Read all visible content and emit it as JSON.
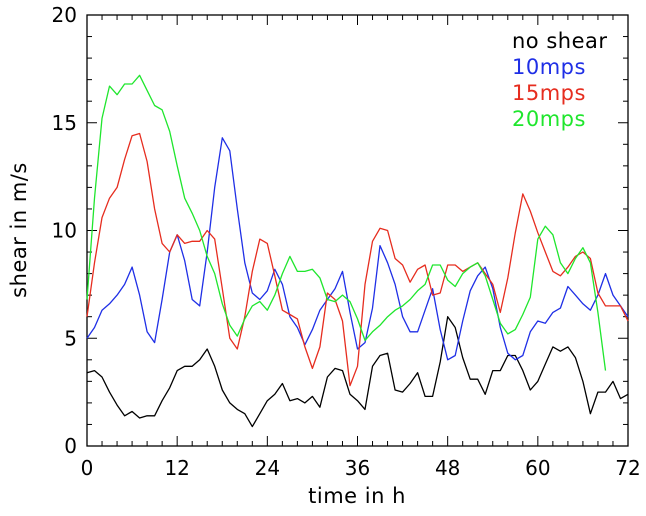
{
  "chart_data": {
    "type": "line",
    "title": "",
    "xlabel": "time in h",
    "ylabel": "shear in m/s",
    "xlim": [
      0,
      72
    ],
    "ylim": [
      0,
      20
    ],
    "grid": false,
    "legend_position": "top-right",
    "x_ticks": [
      0,
      12,
      24,
      36,
      48,
      60,
      72
    ],
    "y_ticks": [
      0,
      5,
      10,
      15,
      20
    ],
    "x_tick_labels": [
      "0",
      "12",
      "24",
      "36",
      "48",
      "60",
      "72"
    ],
    "y_tick_labels": [
      "0",
      "5",
      "10",
      "15",
      "20"
    ],
    "series": [
      {
        "name": "no shear",
        "color": "#000000",
        "x": [
          0,
          1,
          2,
          3,
          4,
          5,
          6,
          7,
          8,
          9,
          10,
          11,
          12,
          13,
          14,
          15,
          16,
          17,
          18,
          19,
          20,
          21,
          22,
          23,
          24,
          25,
          26,
          27,
          28,
          29,
          30,
          31,
          32,
          33,
          34,
          35,
          36,
          37,
          38,
          39,
          40,
          41,
          42,
          43,
          44,
          45,
          46,
          47,
          48,
          49,
          50,
          51,
          52,
          53,
          54,
          55,
          56,
          57,
          58,
          59,
          60,
          61,
          62,
          63,
          64,
          65,
          66,
          67,
          68,
          69,
          70,
          71,
          72
        ],
        "values": [
          3.4,
          3.5,
          3.2,
          2.5,
          1.9,
          1.4,
          1.6,
          1.3,
          1.4,
          1.4,
          2.1,
          2.7,
          3.5,
          3.7,
          3.7,
          4.0,
          4.5,
          3.7,
          2.6,
          2.0,
          1.7,
          1.5,
          0.9,
          1.5,
          2.1,
          2.4,
          2.9,
          2.1,
          2.2,
          2.0,
          2.3,
          1.8,
          3.2,
          3.6,
          3.5,
          2.4,
          2.1,
          1.7,
          3.7,
          4.2,
          4.3,
          2.6,
          2.5,
          2.9,
          3.4,
          2.3,
          2.3,
          3.9,
          6.0,
          5.5,
          4.1,
          3.1,
          3.1,
          2.4,
          3.5,
          3.5,
          4.2,
          4.2,
          3.5,
          2.6,
          3.0,
          3.8,
          4.6,
          4.4,
          4.6,
          4.1,
          3.0,
          1.5,
          2.5,
          2.5,
          3.0,
          2.2,
          2.4
        ]
      },
      {
        "name": "10mps",
        "color": "#1f2fe6",
        "x": [
          0,
          1,
          2,
          3,
          4,
          5,
          6,
          7,
          8,
          9,
          10,
          11,
          12,
          13,
          14,
          15,
          16,
          17,
          18,
          19,
          20,
          21,
          22,
          23,
          24,
          25,
          26,
          27,
          28,
          29,
          30,
          31,
          32,
          33,
          34,
          35,
          36,
          37,
          38,
          39,
          40,
          41,
          42,
          43,
          44,
          45,
          46,
          47,
          48,
          49,
          50,
          51,
          52,
          53,
          54,
          55,
          56,
          57,
          58,
          59,
          60,
          61,
          62,
          63,
          64,
          65,
          66,
          67,
          68,
          69,
          70,
          71,
          72
        ],
        "values": [
          5.0,
          5.5,
          6.3,
          6.6,
          7.0,
          7.5,
          8.3,
          7.0,
          5.3,
          4.8,
          6.8,
          9.0,
          9.8,
          8.6,
          6.8,
          6.5,
          9.0,
          12.0,
          14.3,
          13.7,
          11.0,
          8.5,
          7.1,
          6.8,
          7.2,
          8.2,
          7.5,
          6.0,
          5.5,
          4.7,
          5.4,
          6.3,
          6.8,
          7.3,
          8.1,
          6.2,
          4.5,
          4.8,
          6.4,
          9.3,
          8.5,
          7.5,
          6.0,
          5.3,
          5.3,
          6.3,
          7.3,
          5.4,
          4.0,
          4.2,
          5.8,
          7.2,
          7.9,
          8.3,
          7.3,
          5.5,
          4.3,
          4.0,
          4.2,
          5.3,
          5.8,
          5.7,
          6.2,
          6.4,
          7.4,
          7.0,
          6.6,
          6.3,
          7.0,
          8.0,
          7.0,
          6.5,
          6.0
        ]
      },
      {
        "name": "15mps",
        "color": "#e62d1f",
        "x": [
          0,
          1,
          2,
          3,
          4,
          5,
          6,
          7,
          8,
          9,
          10,
          11,
          12,
          13,
          14,
          15,
          16,
          17,
          18,
          19,
          20,
          21,
          22,
          23,
          24,
          25,
          26,
          27,
          28,
          29,
          30,
          31,
          32,
          33,
          34,
          35,
          36,
          37,
          38,
          39,
          40,
          41,
          42,
          43,
          44,
          45,
          46,
          47,
          48,
          49,
          50,
          51,
          52,
          53,
          54,
          55,
          56,
          57,
          58,
          59,
          60,
          61,
          62,
          63,
          64,
          65,
          66,
          67,
          68,
          69,
          70,
          71,
          72
        ],
        "values": [
          6.0,
          8.5,
          10.6,
          11.5,
          12.0,
          13.3,
          14.4,
          14.5,
          13.2,
          11.0,
          9.4,
          9.0,
          9.8,
          9.4,
          9.5,
          9.5,
          10.0,
          9.6,
          7.3,
          5.0,
          4.5,
          6.0,
          8.1,
          9.6,
          9.4,
          7.9,
          6.3,
          6.1,
          5.9,
          4.6,
          3.6,
          4.6,
          7.1,
          6.8,
          5.8,
          2.8,
          3.7,
          7.5,
          9.5,
          10.1,
          10.0,
          8.7,
          8.4,
          7.6,
          8.2,
          8.4,
          7.0,
          7.1,
          8.4,
          8.4,
          8.1,
          8.3,
          8.5,
          8.0,
          7.5,
          6.2,
          7.8,
          9.9,
          11.7,
          10.9,
          9.9,
          9.0,
          8.1,
          7.9,
          8.3,
          8.8,
          9.0,
          8.7,
          7.1,
          6.5,
          6.5,
          6.5,
          5.8
        ]
      },
      {
        "name": "20mps",
        "color": "#1fe62d",
        "x": [
          0,
          1,
          2,
          3,
          4,
          5,
          6,
          7,
          8,
          9,
          10,
          11,
          12,
          13,
          14,
          15,
          16,
          17,
          18,
          19,
          20,
          21,
          22,
          23,
          24,
          25,
          26,
          27,
          28,
          29,
          30,
          31,
          32,
          33,
          34,
          35,
          36,
          37,
          38,
          39,
          40,
          41,
          42,
          43,
          44,
          45,
          46,
          47,
          48,
          49,
          50,
          51,
          52,
          53,
          54,
          55,
          56,
          57,
          58,
          59,
          60,
          61,
          62,
          63,
          64,
          65,
          66,
          67,
          68,
          69
        ],
        "values": [
          6.8,
          11.5,
          15.2,
          16.7,
          16.3,
          16.8,
          16.8,
          17.2,
          16.5,
          15.8,
          15.6,
          14.6,
          13.0,
          11.5,
          10.8,
          10.0,
          8.8,
          8.0,
          6.6,
          5.6,
          5.1,
          5.9,
          6.5,
          6.7,
          6.3,
          7.0,
          8.0,
          8.8,
          8.1,
          8.1,
          8.2,
          7.8,
          6.8,
          6.7,
          7.0,
          6.7,
          5.9,
          4.9,
          5.3,
          5.6,
          6.0,
          6.3,
          6.5,
          6.8,
          7.2,
          7.5,
          8.4,
          8.4,
          7.7,
          7.4,
          8.0,
          8.3,
          8.5,
          7.9,
          6.8,
          5.7,
          5.2,
          5.4,
          6.1,
          6.9,
          9.6,
          10.2,
          9.8,
          8.5,
          8.0,
          8.7,
          9.2,
          8.5,
          6.2,
          3.5
        ]
      }
    ]
  }
}
